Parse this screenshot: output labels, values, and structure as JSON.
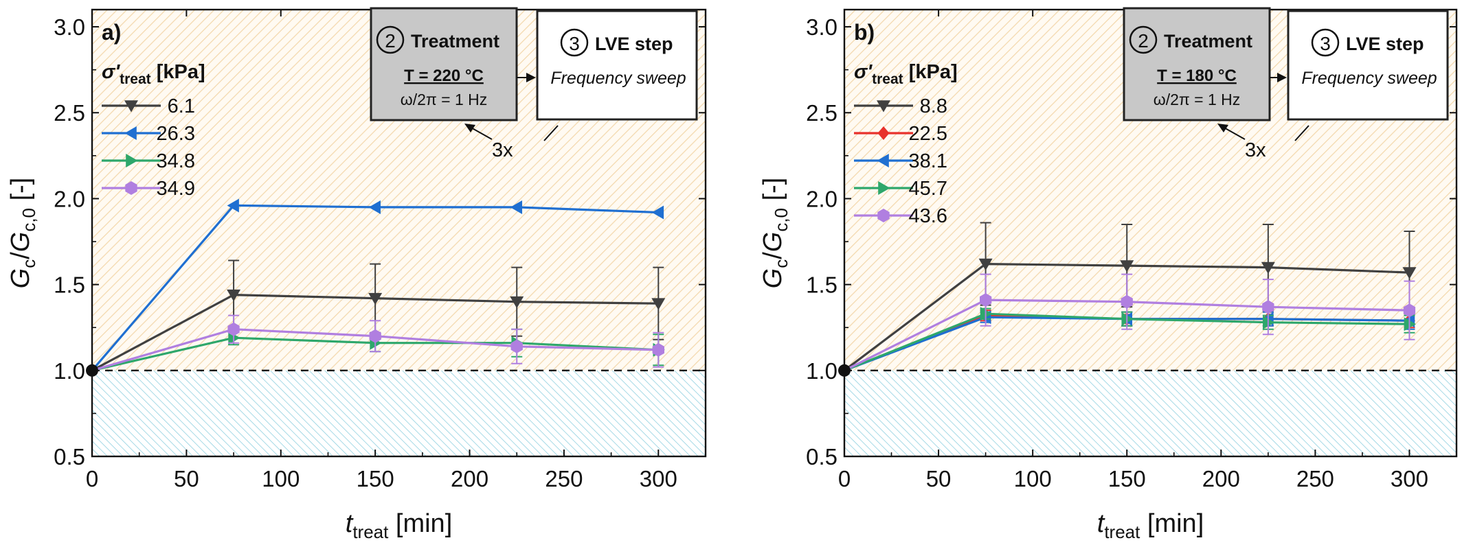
{
  "chart_data": [
    {
      "type": "line",
      "panel_label": "a)",
      "xlabel": {
        "main": "t",
        "sub": "treat",
        "unit": " [min]"
      },
      "ylabel": {
        "g1": "G",
        "s1": "c",
        "slash": "/",
        "g2": "G",
        "s2": "c,0",
        "unit": " [-]"
      },
      "xlim": [
        0,
        325
      ],
      "ylim": [
        0.5,
        3.1
      ],
      "xticks": [
        0,
        50,
        100,
        150,
        200,
        250,
        300
      ],
      "yticks": [
        0.5,
        1.0,
        1.5,
        2.0,
        2.5,
        3.0
      ],
      "ytick_labels": [
        "0.5",
        "1.0",
        "1.5",
        "2.0",
        "2.5",
        "3.0"
      ],
      "reference_line": 1.0,
      "legend_title": {
        "sigma": "σ'",
        "sub": "treat",
        "unit": " [kPa]"
      },
      "legend_placement": "upper-left",
      "process": {
        "step2_number": "2",
        "step2_title": "Treatment",
        "temperature": "T = 220 °C",
        "frequency": "ω/2π = 1 Hz",
        "step3_number": "3",
        "step3_title": "LVE step",
        "step3_sub": "Frequency sweep",
        "repeat": "3x"
      },
      "x": [
        0,
        75,
        150,
        225,
        300
      ],
      "series": [
        {
          "name": "6.1",
          "color": "#404040",
          "marker": "triangle-down",
          "values": [
            1.0,
            1.44,
            1.42,
            1.4,
            1.39
          ],
          "err": [
            0,
            0.2,
            0.2,
            0.2,
            0.21
          ]
        },
        {
          "name": "26.3",
          "color": "#1f6fd1",
          "marker": "triangle-left",
          "values": [
            1.0,
            1.96,
            1.95,
            1.95,
            1.92
          ],
          "err": [
            0,
            0,
            0,
            0,
            0
          ]
        },
        {
          "name": "34.8",
          "color": "#2ea76b",
          "marker": "triangle-right",
          "values": [
            1.0,
            1.19,
            1.16,
            1.16,
            1.12
          ],
          "err": [
            0,
            0.04,
            0.05,
            0.08,
            0.09
          ]
        },
        {
          "name": "34.9",
          "color": "#b07fe0",
          "marker": "hexagon",
          "values": [
            1.0,
            1.24,
            1.2,
            1.14,
            1.12
          ],
          "err": [
            0,
            0.08,
            0.09,
            0.1,
            0.1
          ]
        }
      ]
    },
    {
      "type": "line",
      "panel_label": "b)",
      "xlabel": {
        "main": "t",
        "sub": "treat",
        "unit": " [min]"
      },
      "ylabel": {
        "g1": "G",
        "s1": "c",
        "slash": "/",
        "g2": "G",
        "s2": "c,0",
        "unit": " [-]"
      },
      "xlim": [
        0,
        325
      ],
      "ylim": [
        0.5,
        3.1
      ],
      "xticks": [
        0,
        50,
        100,
        150,
        200,
        250,
        300
      ],
      "yticks": [
        0.5,
        1.0,
        1.5,
        2.0,
        2.5,
        3.0
      ],
      "ytick_labels": [
        "0.5",
        "1.0",
        "1.5",
        "2.0",
        "2.5",
        "3.0"
      ],
      "reference_line": 1.0,
      "legend_title": {
        "sigma": "σ'",
        "sub": "treat",
        "unit": " [kPa]"
      },
      "legend_placement": "upper-left",
      "process": {
        "step2_number": "2",
        "step2_title": "Treatment",
        "temperature": "T = 180 °C",
        "frequency": "ω/2π = 1 Hz",
        "step3_number": "3",
        "step3_title": "LVE step",
        "step3_sub": "Frequency sweep",
        "repeat": "3x"
      },
      "x": [
        0,
        75,
        150,
        225,
        300
      ],
      "series": [
        {
          "name": "8.8",
          "color": "#404040",
          "marker": "triangle-down",
          "values": [
            1.0,
            1.62,
            1.61,
            1.6,
            1.57
          ],
          "err": [
            0,
            0.24,
            0.24,
            0.25,
            0.24
          ]
        },
        {
          "name": "22.5",
          "color": "#e8322c",
          "marker": "diamond",
          "values": [
            1.0,
            1.32,
            1.3,
            1.3,
            1.29
          ],
          "err": [
            0,
            0.03,
            0.04,
            0.04,
            0.04
          ]
        },
        {
          "name": "38.1",
          "color": "#1f6fd1",
          "marker": "triangle-left",
          "values": [
            1.0,
            1.31,
            1.3,
            1.3,
            1.29
          ],
          "err": [
            0,
            0.03,
            0.04,
            0.04,
            0.05
          ]
        },
        {
          "name": "45.7",
          "color": "#2ea76b",
          "marker": "triangle-right",
          "values": [
            1.0,
            1.33,
            1.3,
            1.28,
            1.27
          ],
          "err": [
            0,
            0.03,
            0.04,
            0.04,
            0.05
          ]
        },
        {
          "name": "43.6",
          "color": "#b07fe0",
          "marker": "hexagon",
          "values": [
            1.0,
            1.41,
            1.4,
            1.37,
            1.35
          ],
          "err": [
            0,
            0.15,
            0.16,
            0.16,
            0.17
          ]
        }
      ]
    }
  ]
}
